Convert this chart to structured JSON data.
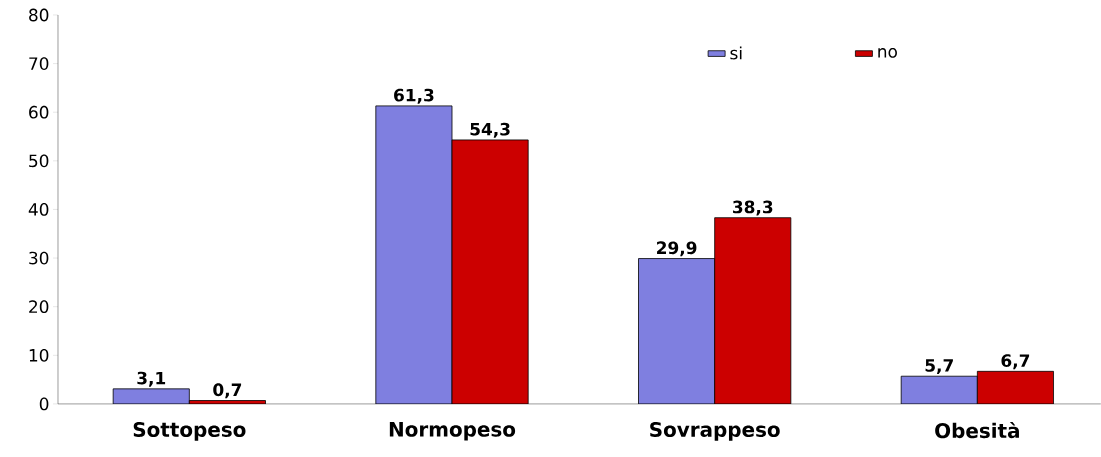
{
  "chart_data": {
    "type": "bar",
    "categories": [
      "Sottopeso",
      "Normopeso",
      "Sovrappeso",
      "Obesità"
    ],
    "series": [
      {
        "name": "si",
        "color": "#7f7fe0",
        "values": [
          3.1,
          61.3,
          29.9,
          5.7
        ],
        "value_labels": [
          "3,1",
          "61,3",
          "29,9",
          "5,7"
        ]
      },
      {
        "name": "no",
        "color": "#cc0000",
        "values": [
          0.7,
          54.3,
          38.3,
          6.7
        ],
        "value_labels": [
          "0,7",
          "54,3",
          "38,3",
          "6,7"
        ]
      }
    ],
    "ylim": [
      0,
      80
    ],
    "yticks": [
      0,
      10,
      20,
      30,
      40,
      50,
      60,
      70,
      80
    ],
    "grid": false,
    "legend": "top right"
  }
}
